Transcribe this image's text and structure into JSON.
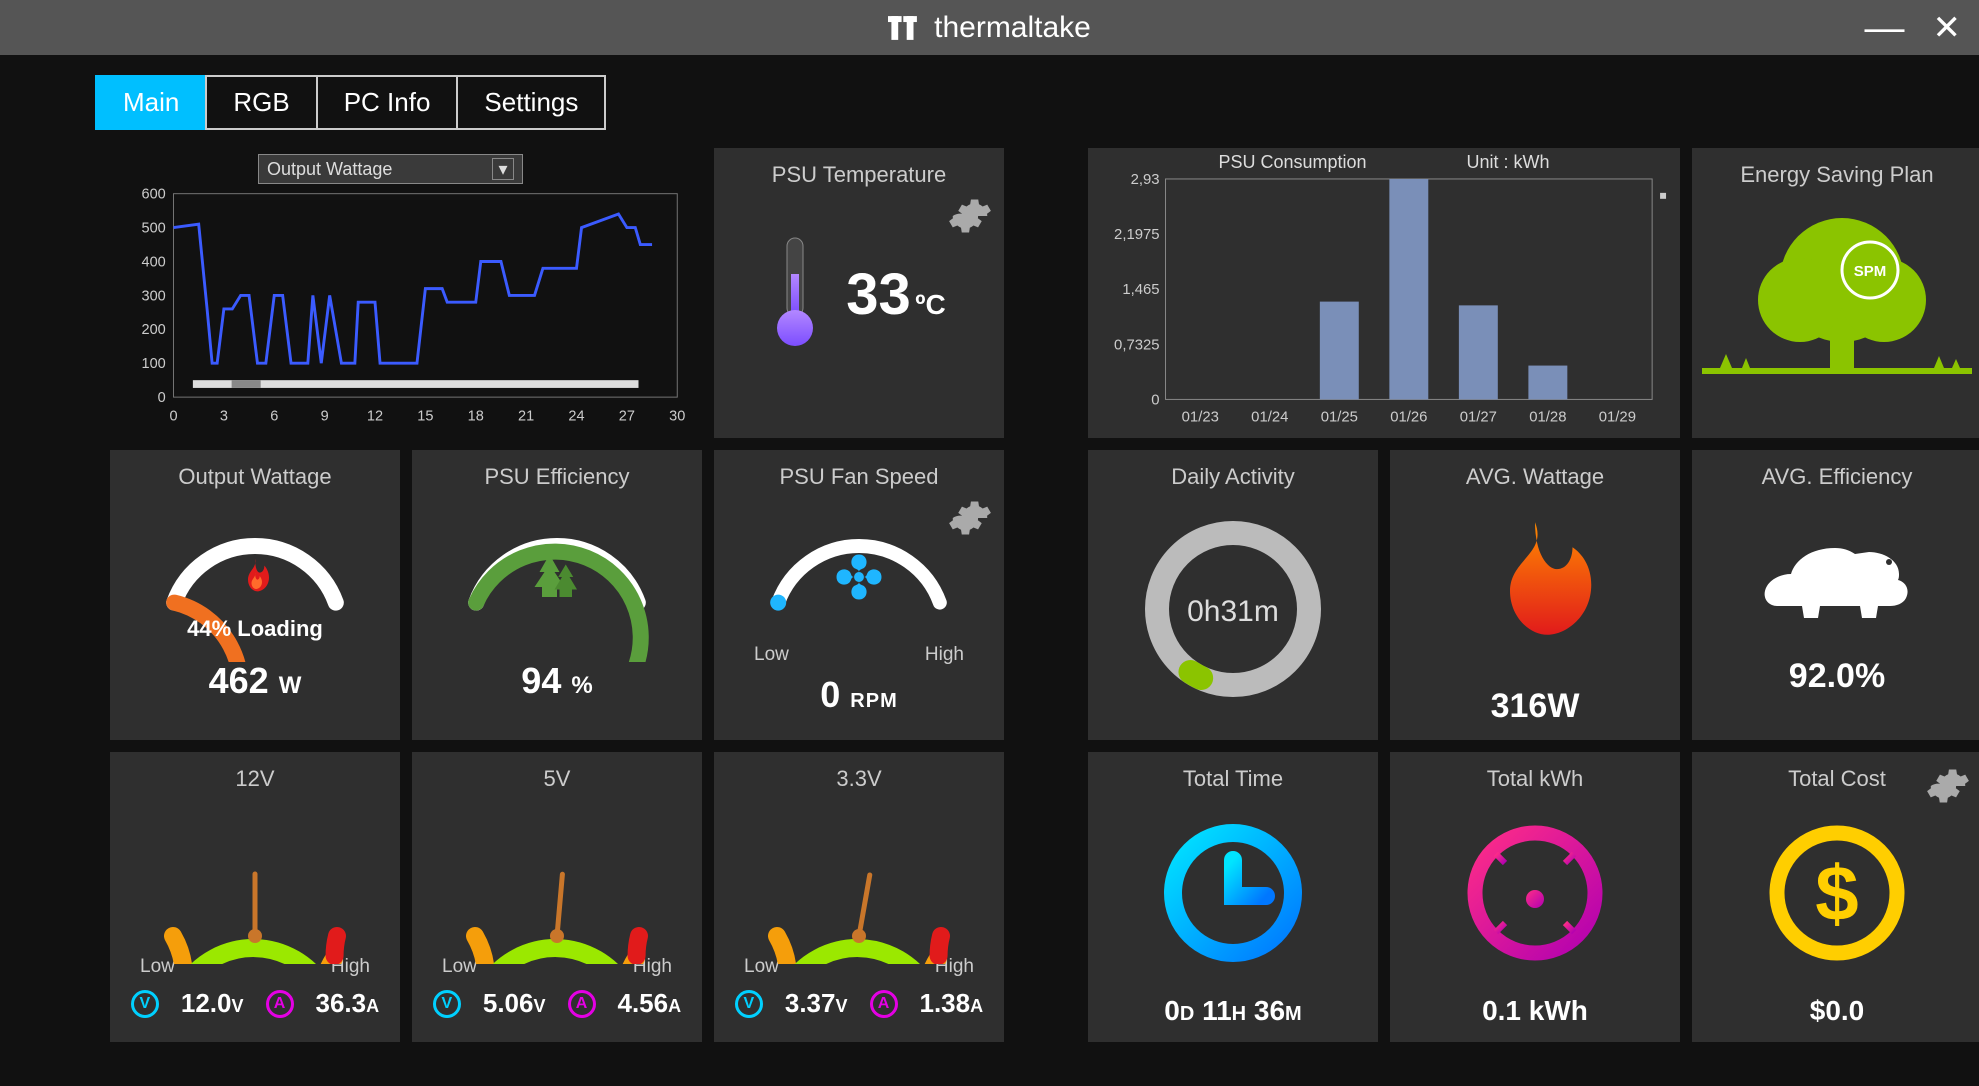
{
  "brand": "thermaltake",
  "tabs": [
    "Main",
    "RGB",
    "PC Info",
    "Settings"
  ],
  "active_tab": 0,
  "colors": {
    "card_bg": "#2f2f2f",
    "accent": "#00bfff",
    "text": "#ffffff",
    "muted": "#cccccc",
    "line_color": "#3b5bff",
    "bar_color": "#7a8fb8",
    "green": "#5a9e3c",
    "orange": "#f07020",
    "red": "#e11b1b",
    "yellow": "#ffce00",
    "pink": "#e6007e",
    "cyan": "#1fb6ff",
    "lime": "#9be800",
    "tree": "#8bc400"
  },
  "line_chart": {
    "title_select": "Output Wattage",
    "y_ticks": [
      0,
      100,
      200,
      300,
      400,
      500,
      600
    ],
    "x_ticks": [
      0,
      3,
      6,
      9,
      12,
      15,
      18,
      21,
      24,
      27,
      30
    ],
    "xlim": [
      0,
      30
    ],
    "ylim": [
      0,
      600
    ],
    "series": [
      {
        "x": 0,
        "y": 500
      },
      {
        "x": 1.5,
        "y": 510
      },
      {
        "x": 2,
        "y": 260
      },
      {
        "x": 2.3,
        "y": 100
      },
      {
        "x": 2.6,
        "y": 100
      },
      {
        "x": 3,
        "y": 260
      },
      {
        "x": 3.5,
        "y": 260
      },
      {
        "x": 4,
        "y": 300
      },
      {
        "x": 4.5,
        "y": 300
      },
      {
        "x": 5,
        "y": 100
      },
      {
        "x": 5.5,
        "y": 100
      },
      {
        "x": 6,
        "y": 300
      },
      {
        "x": 6.5,
        "y": 300
      },
      {
        "x": 7,
        "y": 100
      },
      {
        "x": 8,
        "y": 100
      },
      {
        "x": 8.3,
        "y": 300
      },
      {
        "x": 8.8,
        "y": 100
      },
      {
        "x": 9.3,
        "y": 300
      },
      {
        "x": 10,
        "y": 100
      },
      {
        "x": 10.8,
        "y": 100
      },
      {
        "x": 11,
        "y": 280
      },
      {
        "x": 12,
        "y": 280
      },
      {
        "x": 12.3,
        "y": 100
      },
      {
        "x": 14.5,
        "y": 100
      },
      {
        "x": 15,
        "y": 320
      },
      {
        "x": 16,
        "y": 320
      },
      {
        "x": 16.3,
        "y": 280
      },
      {
        "x": 18,
        "y": 280
      },
      {
        "x": 18.3,
        "y": 400
      },
      {
        "x": 19.5,
        "y": 400
      },
      {
        "x": 20,
        "y": 300
      },
      {
        "x": 21.5,
        "y": 300
      },
      {
        "x": 22,
        "y": 380
      },
      {
        "x": 24,
        "y": 380
      },
      {
        "x": 24.3,
        "y": 500
      },
      {
        "x": 26.5,
        "y": 540
      },
      {
        "x": 27,
        "y": 500
      },
      {
        "x": 27.5,
        "y": 500
      },
      {
        "x": 27.8,
        "y": 450
      },
      {
        "x": 28.5,
        "y": 450
      }
    ]
  },
  "psu_temp": {
    "title": "PSU Temperature",
    "value": "33",
    "unit": "ºC"
  },
  "psu_consumption": {
    "title": "PSU Consumption",
    "unit_label": "Unit : kWh",
    "y_ticks": [
      0,
      0.7325,
      1.465,
      2.1975,
      2.93
    ],
    "y_tick_labels": [
      "0",
      "0,7325",
      "1,465",
      "2,1975",
      "2,93"
    ],
    "categories": [
      "01/23",
      "01/24",
      "01/25",
      "01/26",
      "01/27",
      "01/28",
      "01/29"
    ],
    "values": [
      0,
      0,
      1.3,
      2.93,
      1.25,
      0.45,
      0
    ]
  },
  "energy_saving": {
    "title": "Energy Saving Plan",
    "badge": "SPM"
  },
  "output_wattage": {
    "title": "Output Wattage",
    "loading_pct": "44",
    "loading_label": "% Loading",
    "value": "462",
    "unit": "W",
    "arc_pct": 44
  },
  "psu_efficiency": {
    "title": "PSU Efficiency",
    "value": "94",
    "unit": "%",
    "arc_pct": 80
  },
  "fan_speed": {
    "title": "PSU Fan Speed",
    "value": "0",
    "unit": "RPM",
    "low": "Low",
    "high": "High",
    "arc_pct": 2
  },
  "daily_activity": {
    "title": "Daily Activity",
    "value": "0h31m"
  },
  "avg_wattage": {
    "title": "AVG. Wattage",
    "value": "316",
    "unit": "W"
  },
  "avg_efficiency": {
    "title": "AVG. Efficiency",
    "value": "92.0",
    "unit": "%"
  },
  "rail_12v": {
    "title": "12V",
    "low": "Low",
    "high": "High",
    "volts": "12.0",
    "amps": "36.3",
    "needle_deg": 0
  },
  "rail_5v": {
    "title": "5V",
    "low": "Low",
    "high": "High",
    "volts": "5.06",
    "amps": "4.56",
    "needle_deg": 5
  },
  "rail_33v": {
    "title": "3.3V",
    "low": "Low",
    "high": "High",
    "volts": "3.37",
    "amps": "1.38",
    "needle_deg": 10
  },
  "total_time": {
    "title": "Total Time",
    "value": "0d 11h 36m"
  },
  "total_kwh": {
    "title": "Total kWh",
    "value": "0.1",
    "unit": "kWh"
  },
  "total_cost": {
    "title": "Total Cost",
    "value": "$0.0"
  }
}
